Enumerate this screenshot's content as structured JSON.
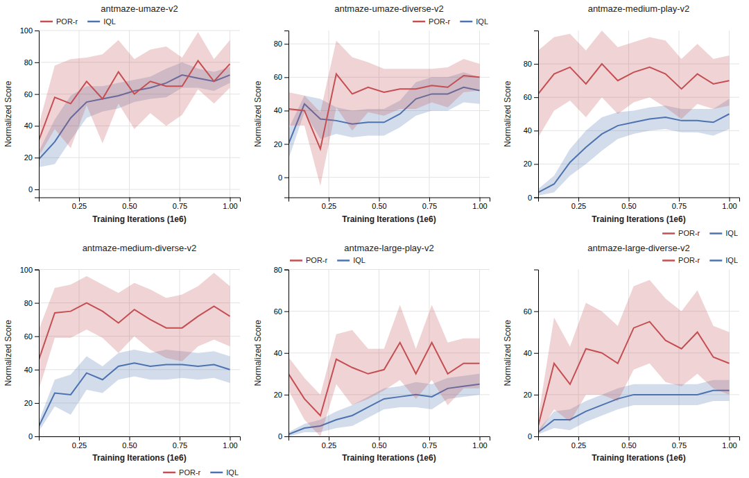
{
  "chart_data": [
    {
      "type": "line",
      "title": "antmaze-umaze-v2",
      "x_label": "Training Iterations (1e6)",
      "y_label": "Normalized Score",
      "x": [
        0.05,
        0.1291666667,
        0.2083333333,
        0.2875,
        0.3666666667,
        0.4458333333,
        0.525,
        0.6041666667,
        0.6833333333,
        0.7625,
        0.8416666667,
        0.9208333333,
        1.0
      ],
      "xlim": [
        0.05,
        1.05
      ],
      "xticks": [
        0.25,
        {
          "value": 0.5,
          "label": "0.50"
        },
        0.75,
        {
          "value": 1.0,
          "label": "1.00"
        }
      ],
      "ylim": [
        -5,
        100
      ],
      "yticks": [
        0,
        20,
        40,
        60,
        80,
        100
      ],
      "grid": true,
      "legend": "upper left",
      "series": [
        {
          "name": "POR-r",
          "color": "#c44e52",
          "values": [
            31,
            58,
            54,
            68,
            57,
            74,
            60,
            68,
            65,
            65,
            81,
            68,
            79
          ],
          "std": [
            10,
            20,
            28,
            15,
            28,
            20,
            22,
            20,
            25,
            18,
            18,
            14,
            15
          ]
        },
        {
          "name": "IQL",
          "color": "#4c72b0",
          "values": [
            19,
            30,
            45,
            55,
            57,
            59,
            62,
            64,
            67,
            72,
            70,
            68,
            72
          ],
          "std": [
            5,
            14,
            14,
            10,
            8,
            8,
            7,
            7,
            9,
            8,
            6,
            6,
            5
          ]
        }
      ]
    },
    {
      "type": "line",
      "title": "antmaze-umaze-diverse-v2",
      "x_label": "Training Iterations (1e6)",
      "y_label": "Normalized Score",
      "x": [
        0.05,
        0.1291666667,
        0.2083333333,
        0.2875,
        0.3666666667,
        0.4458333333,
        0.525,
        0.6041666667,
        0.6833333333,
        0.7625,
        0.8416666667,
        0.9208333333,
        1.0
      ],
      "xlim": [
        0.05,
        1.05
      ],
      "xticks": [
        0.25,
        {
          "value": 0.5,
          "label": "0.50"
        },
        0.75,
        {
          "value": 1.0,
          "label": "1.00"
        }
      ],
      "ylim": [
        -12,
        88
      ],
      "yticks": [
        0,
        20,
        40,
        60,
        80
      ],
      "grid": true,
      "legend": "upper right",
      "series": [
        {
          "name": "POR-r",
          "color": "#c44e52",
          "values": [
            41,
            40,
            17,
            62,
            50,
            54,
            51,
            53,
            53,
            55,
            54,
            61,
            60
          ],
          "std": [
            10,
            9,
            22,
            20,
            22,
            15,
            14,
            12,
            12,
            10,
            12,
            10,
            8
          ]
        },
        {
          "name": "IQL",
          "color": "#4c72b0",
          "values": [
            20,
            44,
            35,
            34,
            32,
            33,
            33,
            38,
            47,
            50,
            50,
            54,
            52
          ],
          "std": [
            9,
            5,
            12,
            8,
            8,
            8,
            8,
            8,
            10,
            10,
            10,
            9,
            8
          ]
        }
      ]
    },
    {
      "type": "line",
      "title": "antmaze-medium-play-v2",
      "x_label": "Training Iterations (1e6)",
      "y_label": "Normalized Score",
      "x": [
        0.05,
        0.1291666667,
        0.2083333333,
        0.2875,
        0.3666666667,
        0.4458333333,
        0.525,
        0.6041666667,
        0.6833333333,
        0.7625,
        0.8416666667,
        0.9208333333,
        1.0
      ],
      "xlim": [
        0.05,
        1.05
      ],
      "xticks": [
        0.25,
        {
          "value": 0.5,
          "label": "0.50"
        },
        0.75,
        {
          "value": 1.0,
          "label": "1.00"
        }
      ],
      "ylim": [
        0,
        100
      ],
      "yticks": [
        0,
        20,
        40,
        60,
        80
      ],
      "grid": true,
      "legend": "lower right",
      "series": [
        {
          "name": "POR-r",
          "color": "#c44e52",
          "values": [
            62,
            74,
            78,
            68,
            80,
            70,
            75,
            78,
            74,
            65,
            74,
            68,
            70
          ],
          "std": [
            26,
            22,
            20,
            20,
            20,
            20,
            18,
            18,
            20,
            18,
            18,
            15,
            15
          ]
        },
        {
          "name": "IQL",
          "color": "#4c72b0",
          "values": [
            3,
            8,
            21,
            30,
            38,
            43,
            45,
            47,
            48,
            46,
            46,
            45,
            50
          ],
          "std": [
            2,
            5,
            8,
            10,
            10,
            8,
            7,
            7,
            7,
            7,
            7,
            8,
            9
          ]
        }
      ]
    },
    {
      "type": "line",
      "title": "antmaze-medium-diverse-v2",
      "x_label": "Training Iterations (1e6)",
      "y_label": "Normalized Score",
      "x": [
        0.05,
        0.1291666667,
        0.2083333333,
        0.2875,
        0.3666666667,
        0.4458333333,
        0.525,
        0.6041666667,
        0.6833333333,
        0.7625,
        0.8416666667,
        0.9208333333,
        1.0
      ],
      "xlim": [
        0.05,
        1.05
      ],
      "xticks": [
        0.25,
        {
          "value": 0.5,
          "label": "0.50"
        },
        0.75,
        {
          "value": 1.0,
          "label": "1.00"
        }
      ],
      "ylim": [
        0,
        100
      ],
      "yticks": [
        0,
        20,
        40,
        60,
        80,
        100
      ],
      "grid": true,
      "legend": "lower right",
      "series": [
        {
          "name": "POR-r",
          "color": "#c44e52",
          "values": [
            46,
            74,
            75,
            80,
            75,
            68,
            76,
            70,
            65,
            65,
            72,
            78,
            72
          ],
          "std": [
            18,
            15,
            16,
            16,
            16,
            18,
            16,
            18,
            18,
            20,
            18,
            20,
            18
          ]
        },
        {
          "name": "IQL",
          "color": "#4c72b0",
          "values": [
            6,
            26,
            25,
            38,
            34,
            42,
            44,
            42,
            43,
            43,
            42,
            43,
            40
          ],
          "std": [
            3,
            8,
            12,
            10,
            8,
            8,
            8,
            8,
            9,
            8,
            8,
            8,
            8
          ]
        }
      ]
    },
    {
      "type": "line",
      "title": "antmaze-large-play-v2",
      "x_label": "Training Iterations (1e6)",
      "y_label": "Normalized Score",
      "x": [
        0.05,
        0.1291666667,
        0.2083333333,
        0.2875,
        0.3666666667,
        0.4458333333,
        0.525,
        0.6041666667,
        0.6833333333,
        0.7625,
        0.8416666667,
        0.9208333333,
        1.0
      ],
      "xlim": [
        0.05,
        1.05
      ],
      "xticks": [
        0.25,
        {
          "value": 0.5,
          "label": "0.50"
        },
        0.75,
        {
          "value": 1.0,
          "label": "1.00"
        }
      ],
      "ylim": [
        0,
        80
      ],
      "yticks": [
        0,
        20,
        40,
        60,
        80
      ],
      "grid": true,
      "legend": "upper left",
      "series": [
        {
          "name": "POR-r",
          "color": "#c44e52",
          "values": [
            30,
            18,
            10,
            37,
            33,
            30,
            32,
            45,
            30,
            45,
            30,
            35,
            35
          ],
          "std": [
            8,
            10,
            10,
            12,
            18,
            12,
            10,
            18,
            12,
            18,
            15,
            12,
            12
          ]
        },
        {
          "name": "IQL",
          "color": "#4c72b0",
          "values": [
            1,
            4,
            5,
            8,
            10,
            14,
            18,
            19,
            20,
            19,
            23,
            24,
            25
          ],
          "std": [
            1,
            2,
            3,
            4,
            5,
            5,
            5,
            5,
            6,
            6,
            5,
            5,
            5
          ]
        }
      ]
    },
    {
      "type": "line",
      "title": "antmaze-large-diverse-v2",
      "x_label": "Training Iterations (1e6)",
      "y_label": "Normalized Score",
      "x": [
        0.05,
        0.1291666667,
        0.2083333333,
        0.2875,
        0.3666666667,
        0.4458333333,
        0.525,
        0.6041666667,
        0.6833333333,
        0.7625,
        0.8416666667,
        0.9208333333,
        1.0
      ],
      "xlim": [
        0.05,
        1.05
      ],
      "xticks": [
        0.25,
        {
          "value": 0.5,
          "label": "0.50"
        },
        0.75,
        {
          "value": 1.0,
          "label": "1.00"
        }
      ],
      "ylim": [
        0,
        80
      ],
      "yticks": [
        0,
        20,
        40,
        60
      ],
      "grid": true,
      "legend": "upper right",
      "series": [
        {
          "name": "POR-r",
          "color": "#c44e52",
          "values": [
            5,
            35,
            25,
            42,
            40,
            35,
            52,
            55,
            46,
            42,
            50,
            38,
            35
          ],
          "std": [
            4,
            22,
            18,
            22,
            20,
            18,
            20,
            20,
            20,
            18,
            20,
            15,
            15
          ]
        },
        {
          "name": "IQL",
          "color": "#4c72b0",
          "values": [
            2,
            8,
            8,
            12,
            15,
            18,
            20,
            20,
            20,
            20,
            20,
            22,
            22
          ],
          "std": [
            1,
            4,
            5,
            5,
            5,
            5,
            5,
            5,
            5,
            5,
            5,
            5,
            5
          ]
        }
      ]
    }
  ]
}
